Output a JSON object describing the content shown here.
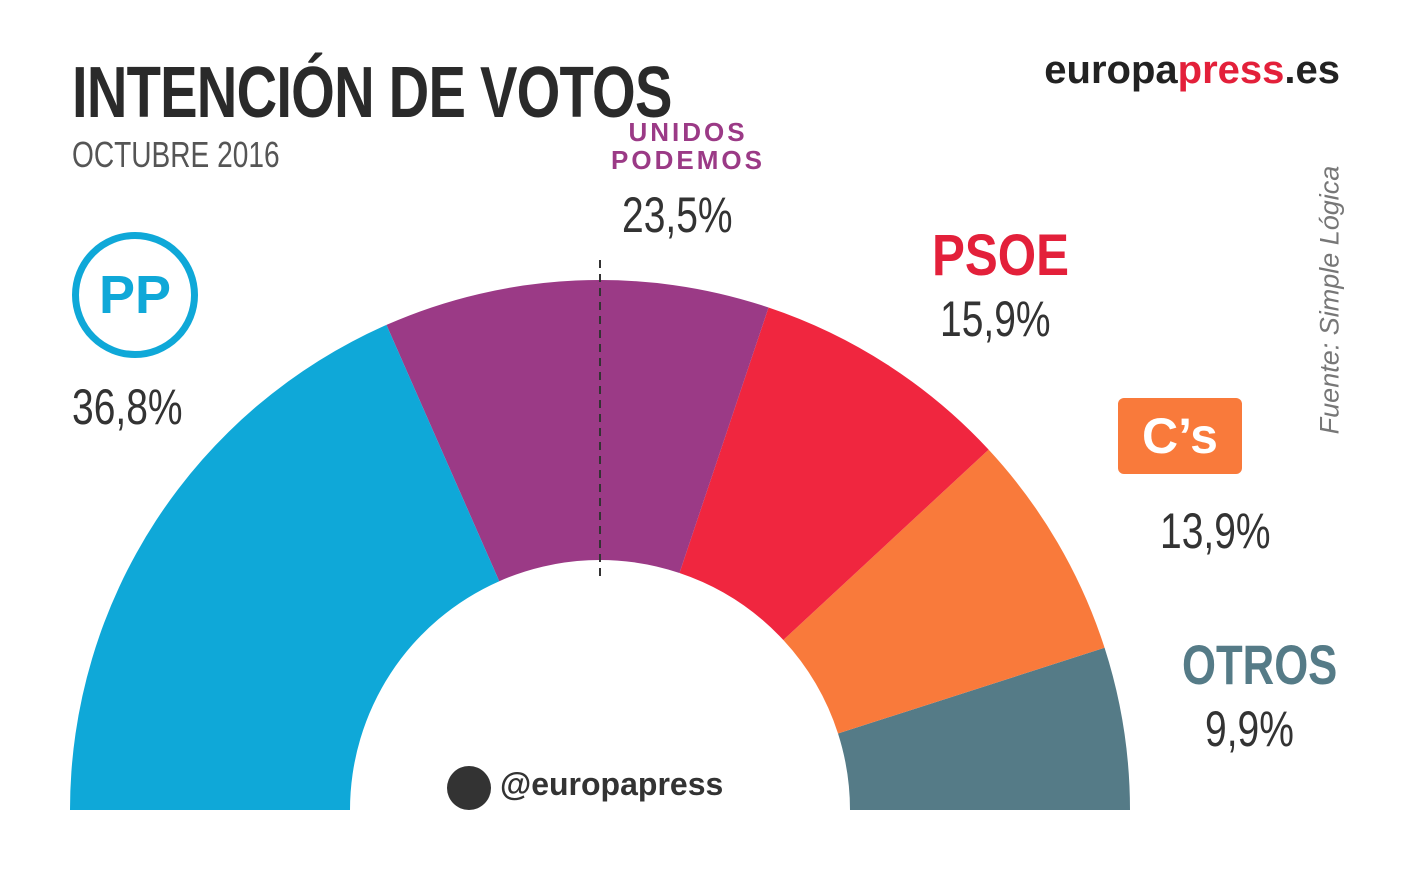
{
  "chart_data": {
    "type": "semidonut",
    "title": "INTENCIÓN DE VOTOS",
    "subtitle": "OCTUBRE 2016",
    "brand": [
      "europa",
      "press",
      ".es"
    ],
    "source": "Fuente: Simple Lógica",
    "handle": "@europapress",
    "categories": [
      "PP",
      "UNIDOS PODEMOS",
      "PSOE",
      "C’s",
      "OTROS"
    ],
    "values": [
      36.8,
      23.5,
      15.9,
      13.9,
      9.9
    ],
    "value_labels": [
      "36,8%",
      "23,5%",
      "15,9%",
      "13,9%",
      "9,9%"
    ],
    "colors": [
      "#0fa8d8",
      "#9b3a86",
      "#f0263f",
      "#f97a3b",
      "#557b87"
    ]
  }
}
